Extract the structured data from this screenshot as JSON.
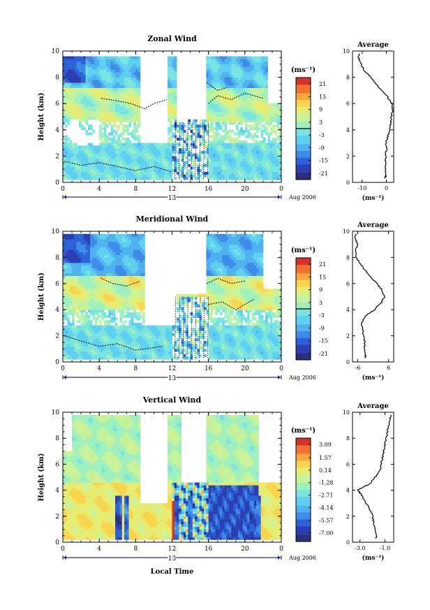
{
  "colors": {
    "scale": [
      "#2b2f7a",
      "#2c3fb0",
      "#2c63d8",
      "#3e8ce8",
      "#4fb2ef",
      "#5fd0f0",
      "#79e4e0",
      "#9ef0bf",
      "#c5f29a",
      "#e6ec72",
      "#f7d64e",
      "#f8a93a",
      "#ef7230",
      "#d6322a"
    ],
    "contour": "#000000"
  },
  "date_label": "Aug 2006",
  "chart_data": [
    {
      "type": "heatmap",
      "title": "Zonal Wind",
      "xlabel": "",
      "ylabel": "Height (km)",
      "xlim": [
        0,
        24
      ],
      "ylim": [
        0,
        10
      ],
      "xticks": [
        "0",
        "4",
        "8",
        "12",
        "16",
        "20",
        "0"
      ],
      "yticks": [
        "0",
        "2",
        "4",
        "6",
        "8",
        "10"
      ],
      "day_label": "13",
      "colorbar": {
        "unit": "(ms⁻¹)",
        "ticks": [
          "21",
          "15",
          "9",
          "3",
          "-3",
          "-9",
          "-15",
          "-21"
        ],
        "range": [
          -24,
          24
        ],
        "contour_at": 0
      },
      "average": {
        "title": "Average",
        "unit": "(ms⁻¹)",
        "xticks": [
          "-10",
          "0"
        ],
        "xlim": [
          -14,
          3
        ],
        "yticks": [
          "0",
          "2",
          "4",
          "6",
          "8",
          "10"
        ],
        "heights": [
          0.3,
          0.5,
          1,
          1.5,
          2,
          2.5,
          3,
          3.5,
          4,
          4.5,
          5,
          5.5,
          6,
          6.5,
          7,
          7.5,
          8,
          8.5,
          9,
          9.5,
          9.8
        ],
        "values": [
          -0.5,
          -0.3,
          -0.5,
          -0.4,
          -0.3,
          0.0,
          -0.2,
          0.5,
          1.5,
          1.8,
          2.0,
          2.5,
          2.2,
          0.5,
          -2.0,
          -4.5,
          -6.5,
          -9.0,
          -10.5,
          -11.5,
          -11.0
        ]
      }
    },
    {
      "type": "heatmap",
      "title": "Meridional Wind",
      "xlabel": "",
      "ylabel": "Height (km)",
      "xlim": [
        0,
        24
      ],
      "ylim": [
        0,
        10
      ],
      "xticks": [
        "0",
        "4",
        "8",
        "12",
        "16",
        "20",
        "0"
      ],
      "yticks": [
        "0",
        "2",
        "4",
        "6",
        "8",
        "10"
      ],
      "day_label": "13",
      "colorbar": {
        "unit": "(ms⁻¹)",
        "ticks": [
          "21",
          "15",
          "9",
          "3",
          "-3",
          "-9",
          "-15",
          "-21"
        ],
        "range": [
          -24,
          24
        ],
        "contour_at": 0
      },
      "average": {
        "title": "Average",
        "unit": "(ms⁻¹)",
        "xticks": [
          "-6",
          "6"
        ],
        "xlim": [
          -8,
          8
        ],
        "yticks": [
          "0",
          "2",
          "4",
          "6",
          "8",
          "10"
        ],
        "heights": [
          0.3,
          0.5,
          1,
          1.5,
          2,
          2.5,
          3,
          3.5,
          4,
          4.5,
          5,
          5.5,
          6,
          6.5,
          7,
          7.5,
          8,
          8.5,
          9,
          9.5,
          9.8
        ],
        "values": [
          -3.0,
          -3.0,
          -3.4,
          -3.2,
          -3.8,
          -4.0,
          -4.5,
          -3.0,
          0.5,
          3.0,
          4.5,
          3.5,
          1.5,
          -1.0,
          -3.0,
          -5.0,
          -6.5,
          -7.0,
          -6.0,
          -7.0,
          -6.5
        ]
      }
    },
    {
      "type": "heatmap",
      "title": "Vertical Wind",
      "xlabel": "Local Time",
      "ylabel": "Height (km)",
      "xlim": [
        0,
        24
      ],
      "ylim": [
        0,
        10
      ],
      "xticks": [
        "0",
        "4",
        "8",
        "12",
        "16",
        "20",
        "0"
      ],
      "yticks": [
        "0",
        "2",
        "4",
        "6",
        "8",
        "10"
      ],
      "day_label": "13",
      "colorbar": {
        "unit": "(ms⁻¹)",
        "ticks": [
          "3.09",
          "1.57",
          "0.14",
          "-1.28",
          "-2.71",
          "-4.14",
          "-5.57",
          "-7.00"
        ],
        "range": [
          -8.0,
          3.8
        ]
      },
      "average": {
        "title": "Average",
        "unit": "(ms⁻¹)",
        "xticks": [
          "-3.0",
          "-1.0"
        ],
        "xlim": [
          -3.6,
          -0.3
        ],
        "yticks": [
          "0",
          "2",
          "4",
          "6",
          "8",
          "10"
        ],
        "heights": [
          0.3,
          0.5,
          1,
          1.5,
          2,
          2.5,
          3,
          3.5,
          3.8,
          4,
          4.2,
          4.5,
          5,
          5.5,
          6,
          6.5,
          7,
          7.5,
          8,
          8.5,
          9,
          9.5,
          9.8
        ],
        "values": [
          -1.7,
          -1.7,
          -1.8,
          -1.9,
          -2.0,
          -2.2,
          -2.5,
          -2.8,
          -3.0,
          -3.2,
          -2.8,
          -2.2,
          -1.8,
          -1.4,
          -1.3,
          -1.2,
          -1.1,
          -1.0,
          -0.9,
          -0.8,
          -0.7,
          -0.6,
          -0.5
        ]
      }
    }
  ]
}
